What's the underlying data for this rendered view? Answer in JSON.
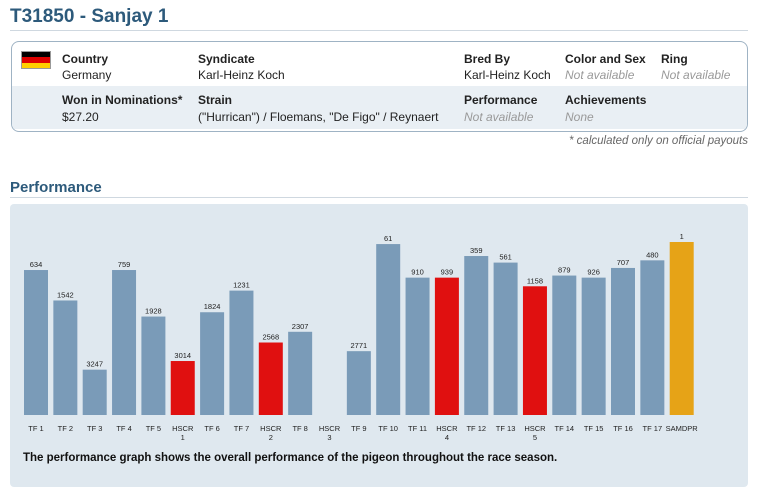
{
  "header": {
    "title": "T31850 - Sanjay 1"
  },
  "info": {
    "flag": {
      "name": "germany-flag-icon",
      "colors": [
        "#000000",
        "#dd0000",
        "#ffce00"
      ]
    },
    "country": {
      "label": "Country",
      "value": "Germany"
    },
    "syndicate": {
      "label": "Syndicate",
      "value": "Karl-Heinz Koch"
    },
    "bred_by": {
      "label": "Bred By",
      "value": "Karl-Heinz Koch"
    },
    "color_sex": {
      "label": "Color and Sex",
      "value": "Not available"
    },
    "ring": {
      "label": "Ring",
      "value": "Not available"
    },
    "won": {
      "label": "Won in Nominations*",
      "value": "$27.20"
    },
    "strain": {
      "label": "Strain",
      "value": "(\"Hurrican\") / Floemans, \"De Figo\" / Reynaert"
    },
    "performance": {
      "label": "Performance",
      "value": "Not available"
    },
    "achievements": {
      "label": "Achievements",
      "value": "None"
    },
    "footnote": "* calculated only on official payouts"
  },
  "section": {
    "title": "Performance"
  },
  "colors": {
    "normal": "#7a9bb8",
    "hscr": "#e01010",
    "samdpr": "#e6a317",
    "panel": "#dfe8ef"
  },
  "chart_data": {
    "type": "bar",
    "caption": "The performance graph shows the overall performance of the pigeon throughout the race season.",
    "bars": [
      {
        "category": [
          "TF 1"
        ],
        "label": "634",
        "value": 0.838,
        "kind": "normal"
      },
      {
        "category": [
          "TF 2"
        ],
        "label": "1542",
        "value": 0.662,
        "kind": "normal"
      },
      {
        "category": [
          "TF 3"
        ],
        "label": "3247",
        "value": 0.262,
        "kind": "normal"
      },
      {
        "category": [
          "TF 4"
        ],
        "label": "759",
        "value": 0.838,
        "kind": "normal"
      },
      {
        "category": [
          "TF 5"
        ],
        "label": "1928",
        "value": 0.569,
        "kind": "normal"
      },
      {
        "category": [
          "HSCR",
          "1"
        ],
        "label": "3014",
        "value": 0.312,
        "kind": "hscr"
      },
      {
        "category": [
          "TF 6"
        ],
        "label": "1824",
        "value": 0.594,
        "kind": "normal"
      },
      {
        "category": [
          "TF 7"
        ],
        "label": "1231",
        "value": 0.719,
        "kind": "normal"
      },
      {
        "category": [
          "HSCR",
          "2"
        ],
        "label": "2568",
        "value": 0.419,
        "kind": "hscr"
      },
      {
        "category": [
          "TF 8"
        ],
        "label": "2307",
        "value": 0.481,
        "kind": "normal"
      },
      {
        "category": [
          "HSCR",
          "3"
        ],
        "label": "",
        "value": 0,
        "kind": "normal"
      },
      {
        "category": [
          "TF 9"
        ],
        "label": "2771",
        "value": 0.369,
        "kind": "normal"
      },
      {
        "category": [
          "TF 10"
        ],
        "label": "61",
        "value": 0.988,
        "kind": "normal"
      },
      {
        "category": [
          "TF 11"
        ],
        "label": "910",
        "value": 0.794,
        "kind": "normal"
      },
      {
        "category": [
          "HSCR",
          "4"
        ],
        "label": "939",
        "value": 0.794,
        "kind": "hscr"
      },
      {
        "category": [
          "TF 12"
        ],
        "label": "359",
        "value": 0.919,
        "kind": "normal"
      },
      {
        "category": [
          "TF 13"
        ],
        "label": "561",
        "value": 0.881,
        "kind": "normal"
      },
      {
        "category": [
          "HSCR",
          "5"
        ],
        "label": "1158",
        "value": 0.744,
        "kind": "hscr"
      },
      {
        "category": [
          "TF 14"
        ],
        "label": "879",
        "value": 0.806,
        "kind": "normal"
      },
      {
        "category": [
          "TF 15"
        ],
        "label": "926",
        "value": 0.794,
        "kind": "normal"
      },
      {
        "category": [
          "TF 16"
        ],
        "label": "707",
        "value": 0.85,
        "kind": "normal"
      },
      {
        "category": [
          "TF 17"
        ],
        "label": "480",
        "value": 0.894,
        "kind": "normal"
      },
      {
        "category": [
          "SAMDPR"
        ],
        "label": "1",
        "value": 1.0,
        "kind": "samdpr"
      }
    ]
  }
}
